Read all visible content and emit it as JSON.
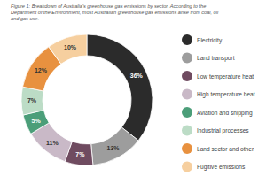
{
  "chart_data": {
    "type": "donut",
    "title": "Figure 1: Breakdown of Australia's greenhouse gas emissions by sector. According to the Department of the Environment, most Australian greenhouse gas emissions arise from coal, oil and gas use.",
    "categories": [
      "Electricity",
      "Land transport",
      "Low temperature heat",
      "High temperature heat",
      "Aviation and shipping",
      "Industrial processes",
      "Land sector and other",
      "Fugitive emissions"
    ],
    "values": [
      36,
      13,
      7,
      11,
      5,
      7,
      12,
      10
    ],
    "value_labels": [
      "36%",
      "13%",
      "7%",
      "11%",
      "5%",
      "7%",
      "12%",
      "10%"
    ],
    "colors": [
      "#2b2b2b",
      "#9d9d9d",
      "#6f4b60",
      "#c9b9c7",
      "#4b9e79",
      "#bcdcc6",
      "#e8913f",
      "#f6cf9f"
    ],
    "data_labels": true,
    "legend": "right"
  }
}
